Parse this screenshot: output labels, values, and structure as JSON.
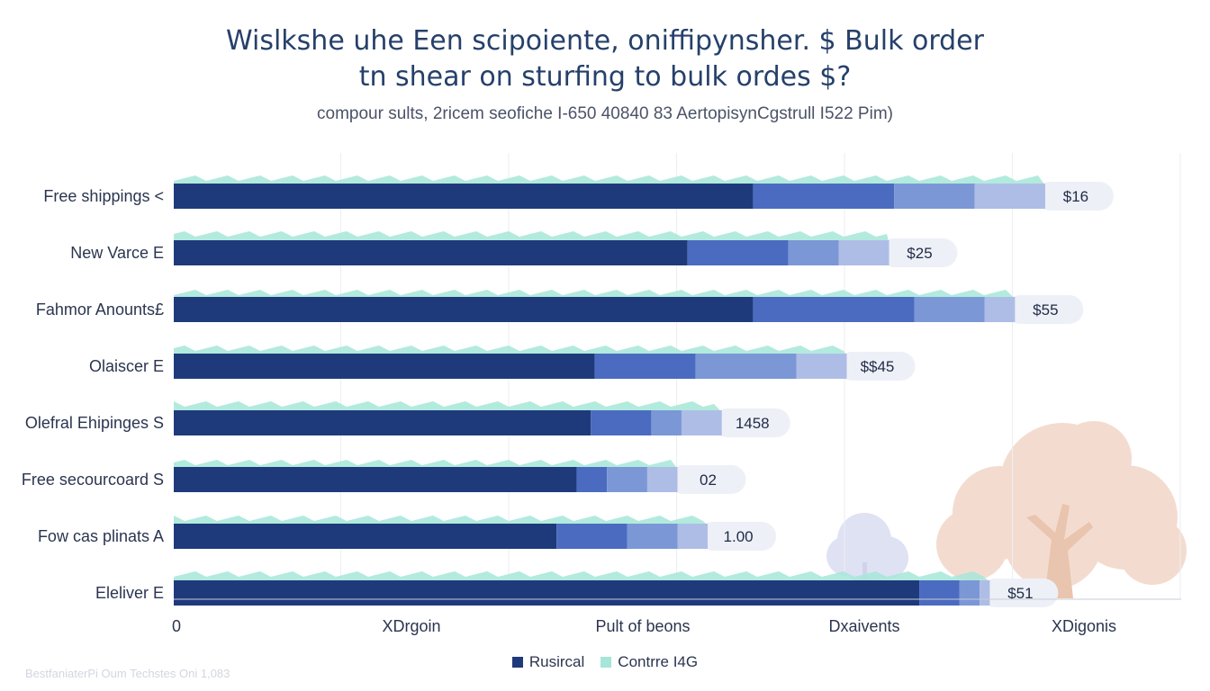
{
  "header": {
    "title_line_1": "Wislkshe uhe Een scipoiente, oniffipynsher. $ Bulk order",
    "title_line_2": "tn shear on sturfing to bulk ordes $?",
    "subtitle": "compour sults, 2ricem seofiche I-650 40840 83 AertopisynCgstrull I522 Pim)"
  },
  "footer_note": "BestfaniaterPi Oum Techstes Oni 1,083",
  "colors": {
    "dark": "#1e3a7b",
    "mid": "#2d4f9b",
    "blue": "#4b6bc0",
    "light": "#7b97d6",
    "pale": "#aebde6",
    "mint": "#a6e6d8",
    "pill": "#eef0f8",
    "tree": "#f3dccf",
    "plant": "#dfe2f3"
  },
  "icons": [
    "tree-illustration",
    "plant-illustration"
  ],
  "chart_data": {
    "type": "bar",
    "orientation": "horizontal",
    "stacked": true,
    "categories": [
      "Free shippings <",
      "New Varce E",
      "Fahmor Anounts£",
      "Olaiscer E",
      "Olefral Ehipinges S",
      "Free secourcoard S",
      "Fow cas plinats A",
      "Eleliver E"
    ],
    "segments": [
      [
        0.575,
        0.14,
        0.08,
        0.07
      ],
      [
        0.51,
        0.1,
        0.05,
        0.05
      ],
      [
        0.575,
        0.16,
        0.07,
        0.03
      ],
      [
        0.418,
        0.1,
        0.1,
        0.05
      ],
      [
        0.414,
        0.06,
        0.03,
        0.04
      ],
      [
        0.4,
        0.03,
        0.04,
        0.03
      ],
      [
        0.38,
        0.07,
        0.05,
        0.03
      ],
      [
        0.74,
        0.04,
        0.02,
        0.01
      ]
    ],
    "value_labels": [
      "$16",
      "$25",
      "$55",
      "$$45",
      "1458",
      "02",
      "1.00",
      "$51"
    ],
    "x_tick_labels": [
      "0",
      "XDrgoin",
      "Pult of beons",
      "Dxaivents",
      "XDigonis"
    ],
    "series": [
      {
        "name": "Rusircal"
      },
      {
        "name": "Contrre I4G"
      }
    ],
    "legend_position": "bottom-center",
    "grid": true
  }
}
